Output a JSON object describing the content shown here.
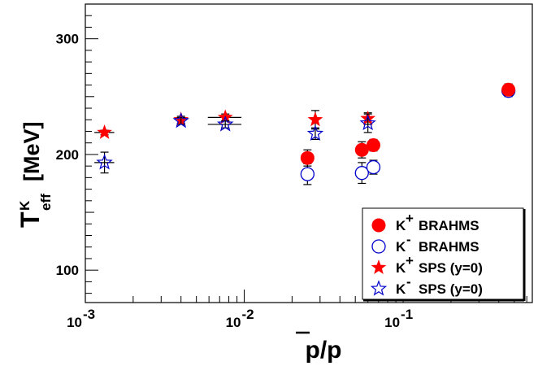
{
  "chart_data": {
    "type": "scatter",
    "xlabel": "p/p",
    "ylabel": "T",
    "ylabel_sup": "K",
    "ylabel_sub": "eff",
    "ylabel_unit": "[MeV]",
    "xscale": "log",
    "xlim": [
      0.001,
      0.65
    ],
    "ylim": [
      72,
      330
    ],
    "x_ticks": [
      {
        "value": 0.001,
        "base": "10",
        "exp": "-3"
      },
      {
        "value": 0.01,
        "base": "10",
        "exp": "-2"
      },
      {
        "value": 0.1,
        "base": "10",
        "exp": "-1"
      }
    ],
    "y_ticks": [
      {
        "value": 100,
        "label": "100"
      },
      {
        "value": 200,
        "label": "200"
      },
      {
        "value": 300,
        "label": "300"
      }
    ],
    "grid": false,
    "legend_position": "bottom-right",
    "colors": {
      "red": "#ff0000",
      "blue": "#0000cc",
      "axis": "#000000"
    },
    "series": [
      {
        "name": "BRAHMS",
        "particle": "K",
        "charge": "+",
        "marker": "filled-circle",
        "color": "#ff0000",
        "points": [
          {
            "x": 0.025,
            "y": 197,
            "yerr": 7
          },
          {
            "x": 0.055,
            "y": 204,
            "yerr": 7
          },
          {
            "x": 0.065,
            "y": 208,
            "yerr": 5
          },
          {
            "x": 0.46,
            "y": 256,
            "yerr": 5
          }
        ]
      },
      {
        "name": "BRAHMS",
        "particle": "K",
        "charge": "-",
        "marker": "open-circle",
        "color": "#0000cc",
        "points": [
          {
            "x": 0.025,
            "y": 183,
            "yerr": 9
          },
          {
            "x": 0.055,
            "y": 184,
            "yerr": 9
          },
          {
            "x": 0.065,
            "y": 189,
            "yerr": 6
          },
          {
            "x": 0.46,
            "y": 255,
            "yerr": 5
          }
        ]
      },
      {
        "name": "SPS (y=0)",
        "particle": "K",
        "charge": "+",
        "marker": "filled-star",
        "color": "#ff0000",
        "points": [
          {
            "x": 0.00132,
            "y": 219,
            "xlo": 0.00114,
            "xhi": 0.00152,
            "yerr": 2
          },
          {
            "x": 0.004,
            "y": 230,
            "yerr": 3
          },
          {
            "x": 0.0076,
            "y": 232,
            "xlo": 0.0059,
            "xhi": 0.0096,
            "yerr": 3
          },
          {
            "x": 0.028,
            "y": 230,
            "yerr": 8
          },
          {
            "x": 0.06,
            "y": 231,
            "yerr": 5
          }
        ]
      },
      {
        "name": "SPS (y=0)",
        "particle": "K",
        "charge": "-",
        "marker": "open-star",
        "color": "#0000cc",
        "points": [
          {
            "x": 0.00132,
            "y": 193,
            "xlo": 0.00114,
            "xhi": 0.00152,
            "yerr": 9
          },
          {
            "x": 0.004,
            "y": 229,
            "yerr": 3
          },
          {
            "x": 0.0076,
            "y": 226,
            "xlo": 0.0059,
            "xhi": 0.0096,
            "yerr": 3
          },
          {
            "x": 0.028,
            "y": 218,
            "yerr": 5
          },
          {
            "x": 0.06,
            "y": 227,
            "yerr": 8
          }
        ]
      }
    ]
  }
}
